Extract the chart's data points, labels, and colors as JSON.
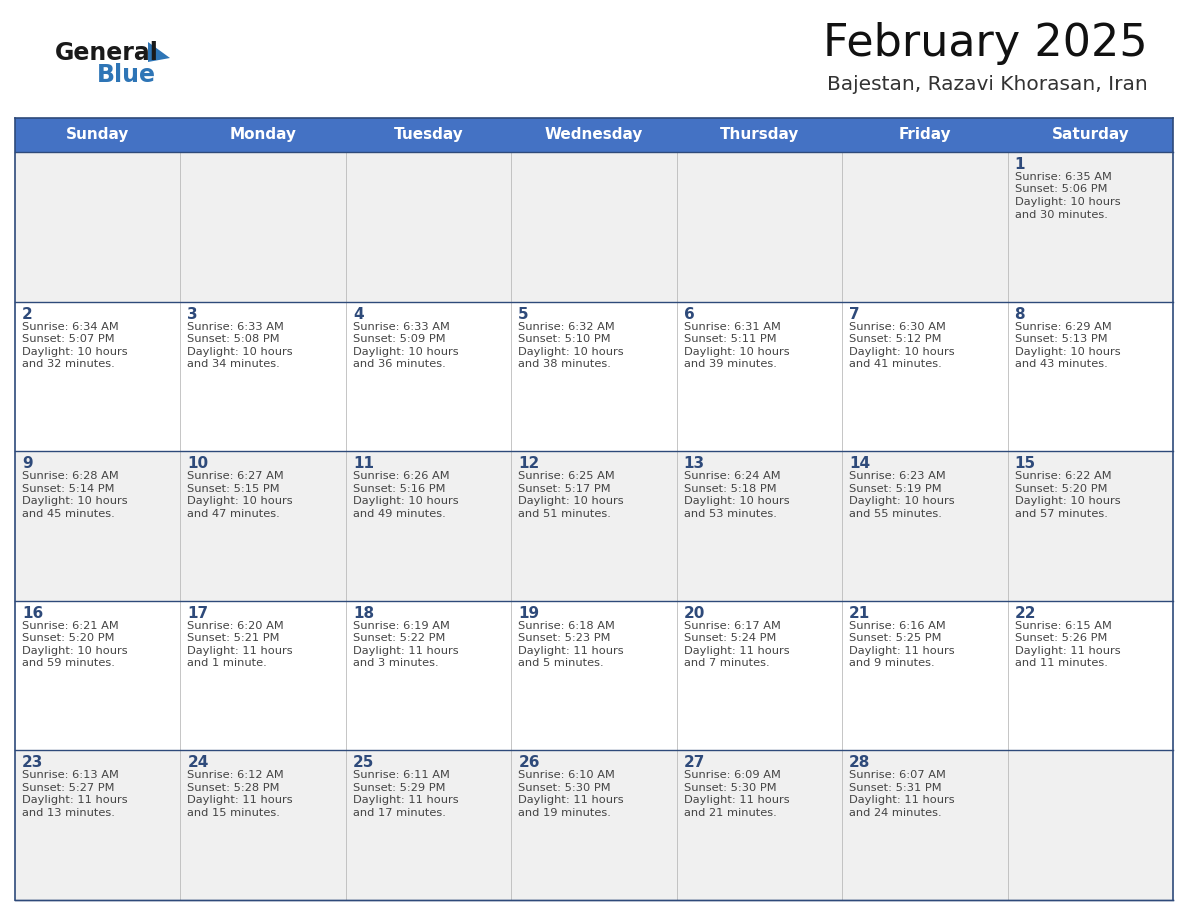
{
  "title": "February 2025",
  "subtitle": "Bajestan, Razavi Khorasan, Iran",
  "header_color": "#4472C4",
  "header_text_color": "#FFFFFF",
  "days_of_week": [
    "Sunday",
    "Monday",
    "Tuesday",
    "Wednesday",
    "Thursday",
    "Friday",
    "Saturday"
  ],
  "bg_color": "#FFFFFF",
  "cell_bg_light": "#F0F0F0",
  "cell_bg_white": "#FFFFFF",
  "grid_line_color": "#2E4A7A",
  "day_number_color": "#2E4A7A",
  "text_color": "#444444",
  "logo_general_color": "#1A1A1A",
  "logo_blue_color": "#2E75B6",
  "weeks": [
    [
      {
        "day": null,
        "info": ""
      },
      {
        "day": null,
        "info": ""
      },
      {
        "day": null,
        "info": ""
      },
      {
        "day": null,
        "info": ""
      },
      {
        "day": null,
        "info": ""
      },
      {
        "day": null,
        "info": ""
      },
      {
        "day": 1,
        "info": "Sunrise: 6:35 AM\nSunset: 5:06 PM\nDaylight: 10 hours\nand 30 minutes."
      }
    ],
    [
      {
        "day": 2,
        "info": "Sunrise: 6:34 AM\nSunset: 5:07 PM\nDaylight: 10 hours\nand 32 minutes."
      },
      {
        "day": 3,
        "info": "Sunrise: 6:33 AM\nSunset: 5:08 PM\nDaylight: 10 hours\nand 34 minutes."
      },
      {
        "day": 4,
        "info": "Sunrise: 6:33 AM\nSunset: 5:09 PM\nDaylight: 10 hours\nand 36 minutes."
      },
      {
        "day": 5,
        "info": "Sunrise: 6:32 AM\nSunset: 5:10 PM\nDaylight: 10 hours\nand 38 minutes."
      },
      {
        "day": 6,
        "info": "Sunrise: 6:31 AM\nSunset: 5:11 PM\nDaylight: 10 hours\nand 39 minutes."
      },
      {
        "day": 7,
        "info": "Sunrise: 6:30 AM\nSunset: 5:12 PM\nDaylight: 10 hours\nand 41 minutes."
      },
      {
        "day": 8,
        "info": "Sunrise: 6:29 AM\nSunset: 5:13 PM\nDaylight: 10 hours\nand 43 minutes."
      }
    ],
    [
      {
        "day": 9,
        "info": "Sunrise: 6:28 AM\nSunset: 5:14 PM\nDaylight: 10 hours\nand 45 minutes."
      },
      {
        "day": 10,
        "info": "Sunrise: 6:27 AM\nSunset: 5:15 PM\nDaylight: 10 hours\nand 47 minutes."
      },
      {
        "day": 11,
        "info": "Sunrise: 6:26 AM\nSunset: 5:16 PM\nDaylight: 10 hours\nand 49 minutes."
      },
      {
        "day": 12,
        "info": "Sunrise: 6:25 AM\nSunset: 5:17 PM\nDaylight: 10 hours\nand 51 minutes."
      },
      {
        "day": 13,
        "info": "Sunrise: 6:24 AM\nSunset: 5:18 PM\nDaylight: 10 hours\nand 53 minutes."
      },
      {
        "day": 14,
        "info": "Sunrise: 6:23 AM\nSunset: 5:19 PM\nDaylight: 10 hours\nand 55 minutes."
      },
      {
        "day": 15,
        "info": "Sunrise: 6:22 AM\nSunset: 5:20 PM\nDaylight: 10 hours\nand 57 minutes."
      }
    ],
    [
      {
        "day": 16,
        "info": "Sunrise: 6:21 AM\nSunset: 5:20 PM\nDaylight: 10 hours\nand 59 minutes."
      },
      {
        "day": 17,
        "info": "Sunrise: 6:20 AM\nSunset: 5:21 PM\nDaylight: 11 hours\nand 1 minute."
      },
      {
        "day": 18,
        "info": "Sunrise: 6:19 AM\nSunset: 5:22 PM\nDaylight: 11 hours\nand 3 minutes."
      },
      {
        "day": 19,
        "info": "Sunrise: 6:18 AM\nSunset: 5:23 PM\nDaylight: 11 hours\nand 5 minutes."
      },
      {
        "day": 20,
        "info": "Sunrise: 6:17 AM\nSunset: 5:24 PM\nDaylight: 11 hours\nand 7 minutes."
      },
      {
        "day": 21,
        "info": "Sunrise: 6:16 AM\nSunset: 5:25 PM\nDaylight: 11 hours\nand 9 minutes."
      },
      {
        "day": 22,
        "info": "Sunrise: 6:15 AM\nSunset: 5:26 PM\nDaylight: 11 hours\nand 11 minutes."
      }
    ],
    [
      {
        "day": 23,
        "info": "Sunrise: 6:13 AM\nSunset: 5:27 PM\nDaylight: 11 hours\nand 13 minutes."
      },
      {
        "day": 24,
        "info": "Sunrise: 6:12 AM\nSunset: 5:28 PM\nDaylight: 11 hours\nand 15 minutes."
      },
      {
        "day": 25,
        "info": "Sunrise: 6:11 AM\nSunset: 5:29 PM\nDaylight: 11 hours\nand 17 minutes."
      },
      {
        "day": 26,
        "info": "Sunrise: 6:10 AM\nSunset: 5:30 PM\nDaylight: 11 hours\nand 19 minutes."
      },
      {
        "day": 27,
        "info": "Sunrise: 6:09 AM\nSunset: 5:30 PM\nDaylight: 11 hours\nand 21 minutes."
      },
      {
        "day": 28,
        "info": "Sunrise: 6:07 AM\nSunset: 5:31 PM\nDaylight: 11 hours\nand 24 minutes."
      },
      {
        "day": null,
        "info": ""
      }
    ]
  ]
}
